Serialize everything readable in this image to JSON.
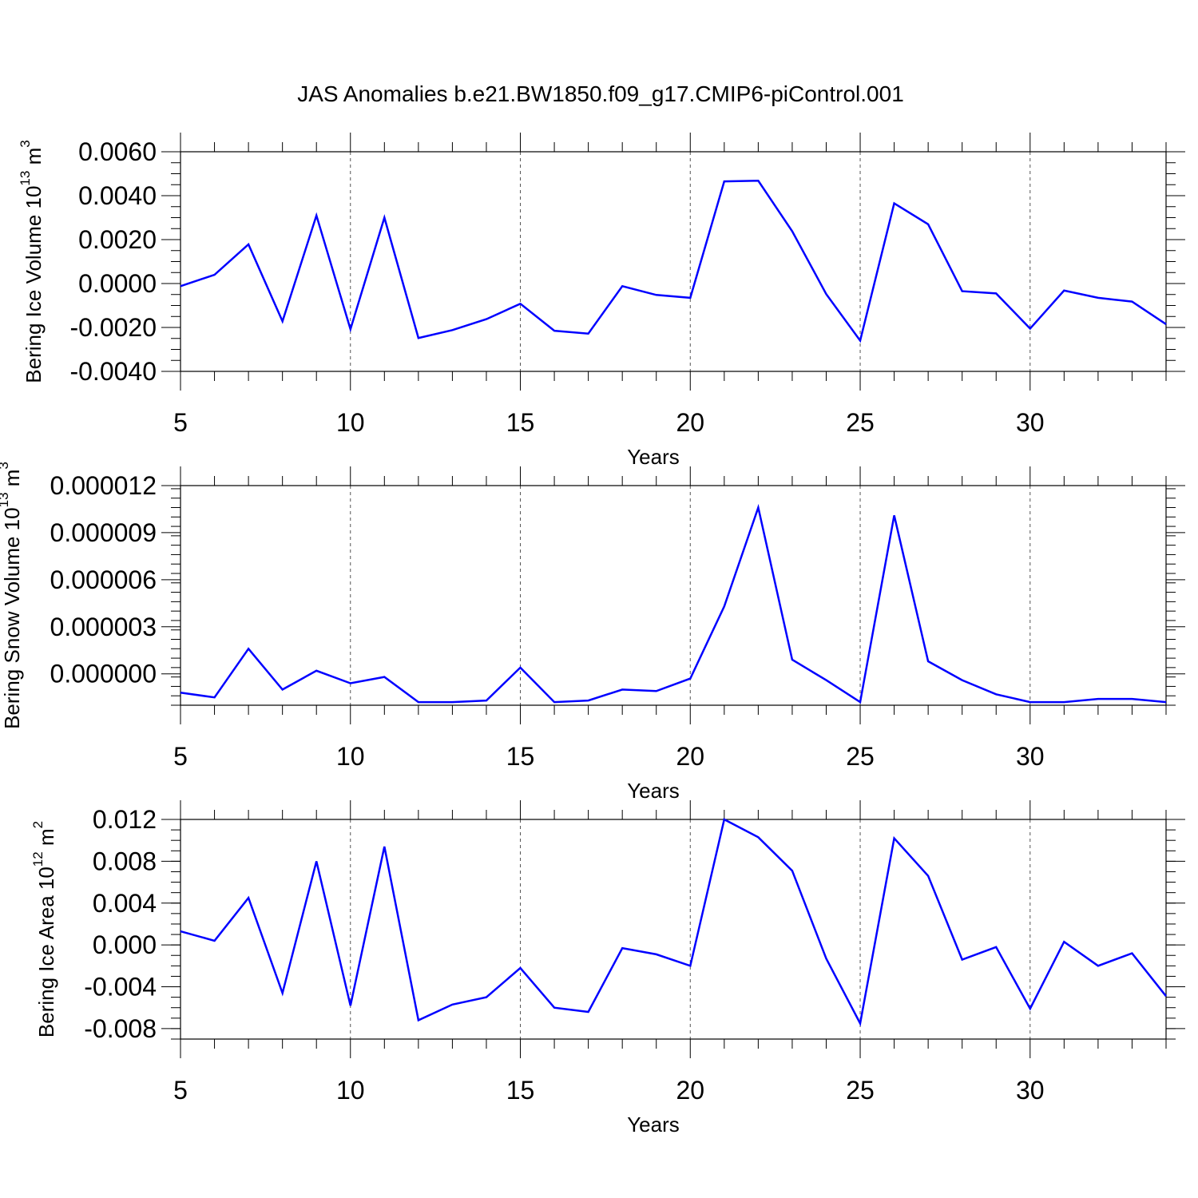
{
  "figure": {
    "title": "JAS Anomalies b.e21.BW1850.f09_g17.CMIP6-piControl.001"
  },
  "chart_data": [
    {
      "type": "line",
      "ylabel": "Bering Ice Volume 10",
      "ylabel_exponent": "13",
      "ylabel_unit": "m",
      "ylabel_unit_exponent": "3",
      "xlabel": "Years",
      "xlim": [
        5,
        34
      ],
      "ylim": [
        -0.004,
        0.006
      ],
      "xticks": [
        5,
        10,
        15,
        20,
        25,
        30
      ],
      "xtick_labels": [
        "5",
        "10",
        "15",
        "20",
        "25",
        "30"
      ],
      "yticks": [
        -0.004,
        -0.002,
        0.0,
        0.002,
        0.004,
        0.006
      ],
      "ytick_labels": [
        "-0.0040",
        "-0.0020",
        "0.0000",
        "0.0020",
        "0.0040",
        "0.0060"
      ],
      "y_minor_step": 0.0005,
      "color": "#0000ff",
      "x": [
        5,
        6,
        7,
        8,
        9,
        10,
        11,
        12,
        13,
        14,
        15,
        16,
        17,
        18,
        19,
        20,
        21,
        22,
        23,
        24,
        25,
        26,
        27,
        28,
        29,
        30,
        31,
        32,
        33,
        34
      ],
      "values": [
        -0.00012,
        0.0004,
        0.00178,
        -0.00172,
        0.0031,
        -0.00208,
        0.003,
        -0.00248,
        -0.00212,
        -0.00162,
        -0.00092,
        -0.00215,
        -0.00228,
        -0.00012,
        -0.00052,
        -0.00065,
        0.00465,
        0.00468,
        0.00238,
        -0.00048,
        -0.0026,
        0.00365,
        0.0027,
        -0.00035,
        -0.00045,
        -0.00205,
        -0.00032,
        -0.00065,
        -0.00082,
        -0.00185
      ]
    },
    {
      "type": "line",
      "ylabel": "Bering Snow Volume 10",
      "ylabel_exponent": "13",
      "ylabel_unit": "m",
      "ylabel_unit_exponent": "3",
      "xlabel": "Years",
      "xlim": [
        5,
        34
      ],
      "ylim": [
        -2e-06,
        1.2e-05
      ],
      "xticks": [
        5,
        10,
        15,
        20,
        25,
        30
      ],
      "xtick_labels": [
        "5",
        "10",
        "15",
        "20",
        "25",
        "30"
      ],
      "yticks": [
        0.0,
        3e-06,
        6e-06,
        9e-06,
        1.2e-05
      ],
      "ytick_labels": [
        "0.000000",
        "0.000003",
        "0.000006",
        "0.000009",
        "0.000012"
      ],
      "y_minor_step": 6e-07,
      "color": "#0000ff",
      "x": [
        5,
        6,
        7,
        8,
        9,
        10,
        11,
        12,
        13,
        14,
        15,
        16,
        17,
        18,
        19,
        20,
        21,
        22,
        23,
        24,
        25,
        26,
        27,
        28,
        29,
        30,
        31,
        32,
        33,
        34
      ],
      "values": [
        -1.2e-06,
        -1.5e-06,
        1.6e-06,
        -1e-06,
        2e-07,
        -6e-07,
        -2e-07,
        -1.8e-06,
        -1.8e-06,
        -1.7e-06,
        4e-07,
        -1.8e-06,
        -1.7e-06,
        -1e-06,
        -1.1e-06,
        -3e-07,
        4.3e-06,
        1.06e-05,
        9e-07,
        -4e-07,
        -1.8e-06,
        1.01e-05,
        8e-07,
        -4e-07,
        -1.3e-06,
        -1.8e-06,
        -1.8e-06,
        -1.6e-06,
        -1.6e-06,
        -1.8e-06
      ]
    },
    {
      "type": "line",
      "ylabel": "Bering Ice Area 10",
      "ylabel_exponent": "12",
      "ylabel_unit": "m",
      "ylabel_unit_exponent": "2",
      "xlabel": "Years",
      "xlim": [
        5,
        34
      ],
      "ylim": [
        -0.009,
        0.012
      ],
      "xticks": [
        5,
        10,
        15,
        20,
        25,
        30
      ],
      "xtick_labels": [
        "5",
        "10",
        "15",
        "20",
        "25",
        "30"
      ],
      "yticks": [
        -0.008,
        -0.004,
        0.0,
        0.004,
        0.008,
        0.012
      ],
      "ytick_labels": [
        "-0.008",
        "-0.004",
        "0.000",
        "0.004",
        "0.008",
        "0.012"
      ],
      "y_minor_step": 0.001,
      "color": "#0000ff",
      "x": [
        5,
        6,
        7,
        8,
        9,
        10,
        11,
        12,
        13,
        14,
        15,
        16,
        17,
        18,
        19,
        20,
        21,
        22,
        23,
        24,
        25,
        26,
        27,
        28,
        29,
        30,
        31,
        32,
        33,
        34
      ],
      "values": [
        0.0013,
        0.0004,
        0.0045,
        -0.0046,
        0.008,
        -0.0058,
        0.0094,
        -0.0072,
        -0.0057,
        -0.005,
        -0.0022,
        -0.006,
        -0.0064,
        -0.0003,
        -0.0009,
        -0.002,
        0.012,
        0.0103,
        0.0071,
        -0.0013,
        -0.0075,
        0.0102,
        0.0066,
        -0.0014,
        -0.0002,
        -0.0061,
        0.0003,
        -0.002,
        -0.0008,
        -0.0049
      ]
    }
  ]
}
